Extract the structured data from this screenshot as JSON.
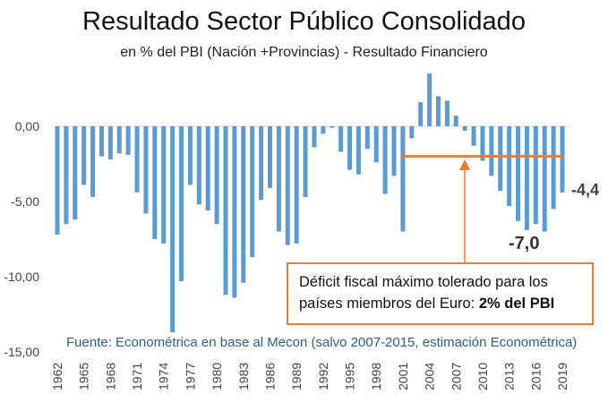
{
  "title": "Resultado Sector Público Consolidado",
  "subtitle": "en % del PBI (Nación +Provincias) - Resultado Financiero",
  "source": "Fuente: Econométrica en base al Mecon (salvo 2007-2015, estimación Econométrica)",
  "annotation": {
    "text_1": "Déficit fiscal máximo tolerado para los",
    "text_2": "países miembros del Euro: ",
    "text_bold": "2% del PBI"
  },
  "colors": {
    "bars": "#5b9bd5",
    "threshold": "#ed7d31",
    "source_text": "#2f5f80"
  },
  "chart_data": {
    "type": "bar",
    "title": "Resultado Sector Público Consolidado",
    "subtitle": "en % del PBI (Nación +Provincias) - Resultado Financiero",
    "xlabel": "",
    "ylabel": "",
    "ylim": [
      -15,
      3.5
    ],
    "yticks": [
      0,
      -5,
      -10,
      -15
    ],
    "ytick_labels": [
      "0,00",
      "-5,00",
      "-10,00",
      "-15,00"
    ],
    "xtick_labels": [
      "1962",
      "1965",
      "1968",
      "1971",
      "1974",
      "1977",
      "1980",
      "1983",
      "1986",
      "1989",
      "1992",
      "1995",
      "1998",
      "2001",
      "2004",
      "2007",
      "2010",
      "2013",
      "2016",
      "2019"
    ],
    "grid": false,
    "categories": [
      1962,
      1963,
      1964,
      1965,
      1966,
      1967,
      1968,
      1969,
      1970,
      1971,
      1972,
      1973,
      1974,
      1975,
      1976,
      1977,
      1978,
      1979,
      1980,
      1981,
      1982,
      1983,
      1984,
      1985,
      1986,
      1987,
      1988,
      1989,
      1990,
      1991,
      1992,
      1993,
      1994,
      1995,
      1996,
      1997,
      1998,
      1999,
      2000,
      2001,
      2002,
      2003,
      2004,
      2005,
      2006,
      2007,
      2008,
      2009,
      2010,
      2011,
      2012,
      2013,
      2014,
      2015,
      2016,
      2017,
      2018,
      2019
    ],
    "values": [
      -7.2,
      -6.5,
      -6.2,
      -3.9,
      -4.7,
      -2.0,
      -2.2,
      -1.8,
      -1.9,
      -4.4,
      -5.8,
      -7.5,
      -7.8,
      -13.7,
      -10.3,
      -3.9,
      -5.2,
      -5.6,
      -6.5,
      -11.2,
      -11.4,
      -10.4,
      -8.7,
      -4.9,
      -4.1,
      -7.0,
      -7.9,
      -7.8,
      -4.7,
      -1.4,
      -0.5,
      -0.1,
      -1.7,
      -2.9,
      -3.2,
      -1.5,
      -2.4,
      -4.5,
      -3.3,
      -7.0,
      -0.8,
      1.6,
      3.5,
      2.0,
      1.7,
      0.7,
      -0.3,
      -1.3,
      -2.3,
      -3.3,
      -4.3,
      -5.3,
      -6.3,
      -6.9,
      -6.5,
      -7.0,
      -5.5,
      -4.4
    ],
    "threshold": {
      "value": -2.0,
      "from": 2001,
      "to": 2019
    },
    "data_labels": [
      {
        "year": 2017,
        "text": "-7,0"
      },
      {
        "year": 2019,
        "text": "-4,4"
      }
    ]
  }
}
